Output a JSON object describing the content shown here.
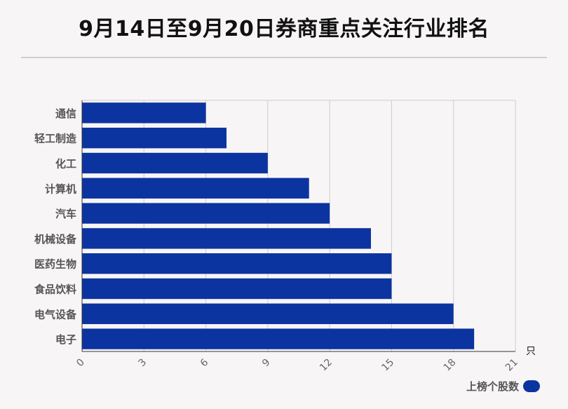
{
  "title": "9月14日至9月20日券商重点关注行业排名",
  "chart_data": {
    "type": "bar",
    "orientation": "horizontal",
    "categories": [
      "通信",
      "轻工制造",
      "化工",
      "计算机",
      "汽车",
      "机械设备",
      "医药生物",
      "食品饮料",
      "电气设备",
      "电子"
    ],
    "series": [
      {
        "name": "上榜个股数",
        "values": [
          6,
          7,
          9,
          11,
          12,
          14,
          15,
          15,
          18,
          19
        ]
      }
    ],
    "x_ticks": [
      0,
      3,
      6,
      9,
      12,
      15,
      18,
      21
    ],
    "xlim": [
      0,
      21
    ],
    "x_unit": "只",
    "grid": true,
    "legend_position": "bottom-right"
  },
  "colors": {
    "bar": "#0c34a0",
    "grid": "#cccccc",
    "axis": "#333333"
  }
}
